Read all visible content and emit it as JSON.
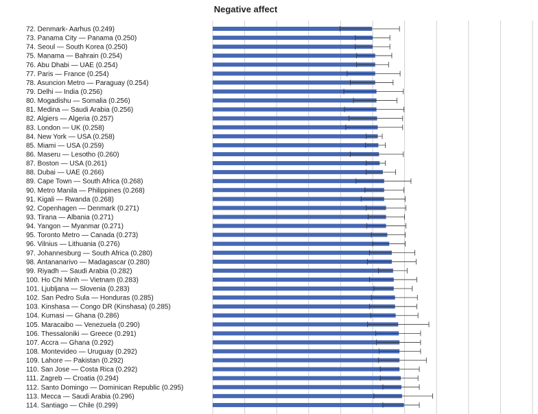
{
  "chart_data": {
    "type": "bar",
    "orientation": "horizontal",
    "title": "Negative affect",
    "xlabel": "",
    "ylabel": "",
    "xlim": [
      0,
      0.5
    ],
    "grid": true,
    "bar_color": "#4668b4",
    "error_bar_color": "#333333",
    "categories": [
      "72. Denmark- Aarhus (0.249)",
      "73. Panama City — Panama (0.250)",
      "74. Seoul — South Korea (0.250)",
      "75. Manama — Bahrain (0.254)",
      "76. Abu Dhabi — UAE (0.254)",
      "77. Paris — France (0.254)",
      "78. Asuncion Metro — Paraguay (0.254)",
      "79. Delhi — India (0.256)",
      "80. Mogadishu — Somalia (0.256)",
      "81. Medina — Saudi Arabia (0.256)",
      "82. Algiers — Algeria (0.257)",
      "83. London — UK (0.258)",
      "84. New York — USA (0.258)",
      "85. Miami — USA (0.259)",
      "86. Maseru — Lesotho (0.260)",
      "87. Boston — USA (0.261)",
      "88. Dubai — UAE (0.266)",
      "89. Cape Town — South Africa (0.268)",
      "90. Metro Manila — Philippines (0.268)",
      "91. Kigali — Rwanda (0.268)",
      "92. Copenhagen — Denmark (0.271)",
      "93. Tirana — Albania (0.271)",
      "94. Yangon — Myanmar (0.271)",
      "95. Toronto Metro — Canada (0.273)",
      "96. Vilnius — Lithuania (0.276)",
      "97. Johannesburg — South Africa (0.280)",
      "98. Antananarivo — Madagascar (0.280)",
      "99. Riyadh — Saudi Arabia (0.282)",
      "100. Ho Chi Minh — Vietnam (0.283)",
      "101. Ljubljana — Slovenia (0.283)",
      "102. San Pedro Sula — Honduras (0.285)",
      "103. Kinshasa — Congo DR (Kinshasa) (0.285)",
      "104. Kumasi — Ghana (0.286)",
      "105. Maracaibo — Venezuela (0.290)",
      "106. Thessaloniki — Greece (0.291)",
      "107. Accra — Ghana (0.292)",
      "108. Montevideo — Uruguay (0.292)",
      "109. Lahore — Pakistan (0.292)",
      "110. San Jose — Costa Rica (0.292)",
      "111. Zagreb — Croatia (0.294)",
      "112. Santo Domingo — Dominican Republic (0.295)",
      "113. Mecca — Saudi Arabia (0.296)",
      "114. Santiago — Chile (0.299)"
    ],
    "values": [
      0.249,
      0.25,
      0.25,
      0.254,
      0.254,
      0.254,
      0.254,
      0.256,
      0.256,
      0.256,
      0.257,
      0.258,
      0.258,
      0.259,
      0.26,
      0.261,
      0.266,
      0.268,
      0.268,
      0.268,
      0.271,
      0.271,
      0.271,
      0.273,
      0.276,
      0.28,
      0.28,
      0.282,
      0.283,
      0.283,
      0.285,
      0.285,
      0.286,
      0.29,
      0.291,
      0.292,
      0.292,
      0.292,
      0.292,
      0.294,
      0.295,
      0.296,
      0.299
    ],
    "error_low": [
      0.199,
      0.223,
      0.223,
      0.225,
      0.225,
      0.21,
      0.215,
      0.205,
      0.22,
      0.206,
      0.213,
      0.208,
      0.24,
      0.239,
      0.215,
      0.24,
      0.24,
      0.224,
      0.238,
      0.232,
      0.24,
      0.243,
      0.241,
      0.248,
      0.25,
      0.245,
      0.242,
      0.259,
      0.245,
      0.252,
      0.248,
      0.245,
      0.247,
      0.242,
      0.255,
      0.256,
      0.26,
      0.259,
      0.262,
      0.262,
      0.266,
      0.252,
      0.266
    ],
    "error_high": [
      0.292,
      0.277,
      0.277,
      0.28,
      0.275,
      0.293,
      0.282,
      0.298,
      0.288,
      0.299,
      0.297,
      0.297,
      0.265,
      0.27,
      0.298,
      0.27,
      0.286,
      0.31,
      0.299,
      0.301,
      0.302,
      0.3,
      0.302,
      0.301,
      0.301,
      0.316,
      0.318,
      0.304,
      0.319,
      0.312,
      0.32,
      0.319,
      0.321,
      0.338,
      0.325,
      0.325,
      0.325,
      0.334,
      0.323,
      0.321,
      0.323,
      0.344,
      0.323
    ]
  }
}
